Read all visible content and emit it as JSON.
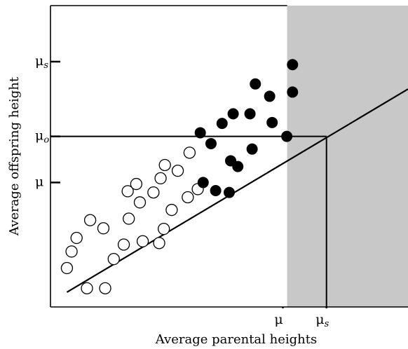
{
  "chart_data": {
    "type": "scatter",
    "xlabel": "Average parental heights",
    "ylabel": "Average offspring height",
    "xlim": [
      0,
      100
    ],
    "ylim": [
      0,
      100
    ],
    "x_ticks": [
      {
        "value": 65,
        "label": "μ",
        "sub": ""
      },
      {
        "value": 77.2,
        "label": "μ",
        "sub": "s"
      }
    ],
    "y_ticks": [
      {
        "value": 81.4,
        "label": "μ",
        "sub": "s"
      },
      {
        "value": 56.6,
        "label": "μ",
        "sub": "o"
      },
      {
        "value": 41.3,
        "label": "μ",
        "sub": ""
      }
    ],
    "selection_threshold_x": 66.2,
    "shading_color": "#c8c8c8",
    "regression_line": {
      "x1": 4.6,
      "y1": 4.9,
      "x2": 100,
      "y2": 72.3
    },
    "reference_lines": {
      "x": 77.2,
      "y": 56.6
    },
    "series": [
      {
        "marker": "open",
        "points": [
          [
            4.6,
            12.9
          ],
          [
            5.9,
            18.4
          ],
          [
            7.3,
            22.9
          ],
          [
            10.2,
            6.2
          ],
          [
            11.1,
            28.8
          ],
          [
            14.8,
            26.1
          ],
          [
            15.3,
            6.2
          ],
          [
            17.7,
            15.9
          ],
          [
            20.5,
            20.7
          ],
          [
            21.6,
            38.4
          ],
          [
            21.9,
            29.3
          ],
          [
            24.0,
            40.8
          ],
          [
            25.0,
            34.7
          ],
          [
            25.8,
            21.8
          ],
          [
            30.4,
            21.2
          ],
          [
            28.8,
            38.0
          ],
          [
            30.8,
            42.7
          ],
          [
            31.7,
            25.9
          ],
          [
            32.0,
            47.1
          ],
          [
            33.9,
            32.2
          ],
          [
            35.6,
            45.2
          ],
          [
            38.4,
            36.4
          ],
          [
            38.9,
            51.2
          ],
          [
            41.2,
            39.1
          ]
        ]
      },
      {
        "marker": "filled",
        "points": [
          [
            41.9,
            57.8
          ],
          [
            42.7,
            41.3
          ],
          [
            44.9,
            54.2
          ],
          [
            46.2,
            38.6
          ],
          [
            48.0,
            60.9
          ],
          [
            50.0,
            38.0
          ],
          [
            50.4,
            48.5
          ],
          [
            51.1,
            64.1
          ],
          [
            52.4,
            46.6
          ],
          [
            55.8,
            64.1
          ],
          [
            56.4,
            52.4
          ],
          [
            57.3,
            74.0
          ],
          [
            61.3,
            69.9
          ],
          [
            62.0,
            61.2
          ],
          [
            66.1,
            56.6
          ],
          [
            67.7,
            80.4
          ],
          [
            67.7,
            71.3
          ]
        ]
      }
    ]
  }
}
